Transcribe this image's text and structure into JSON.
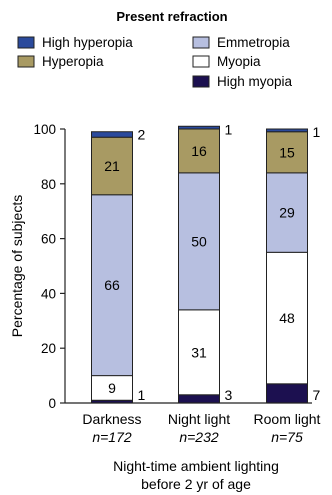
{
  "chart_data": {
    "type": "bar",
    "stacked": true,
    "legend_title": "Present refraction",
    "legend_placement": "top",
    "ylabel": "Percentage of subjects",
    "xlabel_lines": [
      "Night-time ambient lighting",
      "before 2 yr of age"
    ],
    "ylim": [
      0,
      100
    ],
    "yticks": [
      0,
      20,
      40,
      60,
      80,
      100
    ],
    "grid": false,
    "categories": [
      "Darkness",
      "Night light",
      "Room light"
    ],
    "category_n": [
      "n=172",
      "n=232",
      "n=75"
    ],
    "series": [
      {
        "name": "High myopia",
        "color": "#1c1050",
        "values": [
          1,
          3,
          7
        ],
        "labels": [
          "1",
          "3",
          "7"
        ]
      },
      {
        "name": "Myopia",
        "color": "#ffffff",
        "values": [
          9,
          31,
          48
        ],
        "labels": [
          "9",
          "31",
          "48"
        ]
      },
      {
        "name": "Emmetropia",
        "color": "#b7bfe0",
        "values": [
          66,
          50,
          29
        ],
        "labels": [
          "66",
          "50",
          "29"
        ]
      },
      {
        "name": "Hyperopia",
        "color": "#a89a63",
        "values": [
          21,
          16,
          15
        ],
        "labels": [
          "21",
          "16",
          "15"
        ]
      },
      {
        "name": "High hyperopia",
        "color": "#2b4a9c",
        "values": [
          2,
          1,
          1
        ],
        "labels": [
          "2",
          "1",
          "1"
        ]
      }
    ],
    "legend_order": [
      "High hyperopia",
      "Hyperopia",
      "Emmetropia",
      "Myopia",
      "High myopia"
    ]
  }
}
